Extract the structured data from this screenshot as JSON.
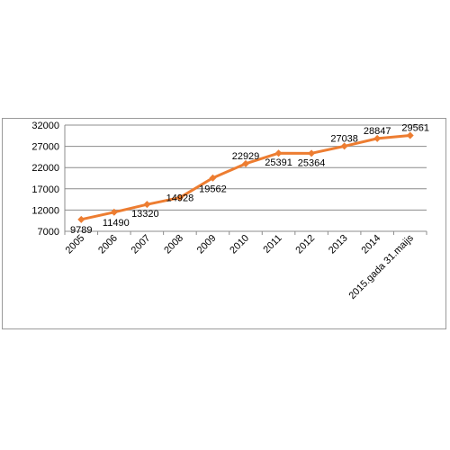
{
  "chart_data": {
    "type": "line",
    "categories": [
      "2005",
      "2006",
      "2007",
      "2008",
      "2009",
      "2010",
      "2011",
      "2012",
      "2013",
      "2014",
      "2015.gada 31.maijs"
    ],
    "values": [
      9789,
      11490,
      13320,
      14928,
      19562,
      22929,
      25391,
      25364,
      27038,
      28847,
      29561
    ],
    "data_labels": [
      "9789",
      "11490",
      "13320",
      "14928",
      "19562",
      "22929",
      "25391",
      "25364",
      "27038",
      "28847",
      "29561"
    ],
    "y_ticks": [
      7000,
      12000,
      17000,
      22000,
      27000,
      32000
    ],
    "y_tick_labels": [
      "7000",
      "12000",
      "17000",
      "22000",
      "27000",
      "32000"
    ],
    "ylim": [
      7000,
      32000
    ],
    "title": "",
    "xlabel": "",
    "ylabel": "",
    "grid": "horizontal",
    "legend": "none",
    "colors": {
      "line": "#ED7D31",
      "marker": "#ED7D31",
      "grid": "#8c8c8c",
      "axis": "#8c8c8c"
    }
  }
}
